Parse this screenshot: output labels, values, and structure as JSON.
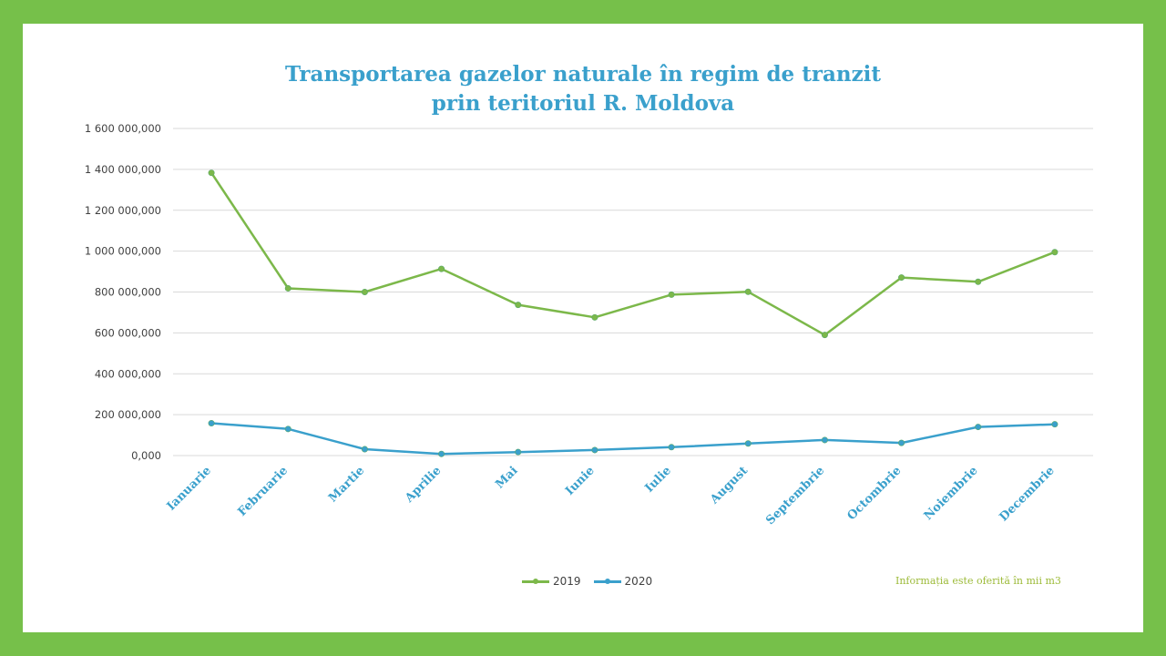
{
  "colors": {
    "frame": "#76c04a",
    "series_2019": "#7cb84a",
    "series_2020": "#3aa0cc",
    "title": "#3aa0cc",
    "note": "#9dbb3a",
    "grid": "#d9d9d9"
  },
  "note": "Informația  este oferită în mii m3",
  "chart_data": {
    "type": "line",
    "title_lines": [
      "Transportarea gazelor naturale în regim de tranzit",
      "prin teritoriul R. Moldova"
    ],
    "categories": [
      "Ianuarie",
      "Februarie",
      "Martie",
      "Aprilie",
      "Mai",
      "Iunie",
      "Iulie",
      "August",
      "Septembrie",
      "Octombrie",
      "Noiembrie",
      "Decembrie"
    ],
    "series": [
      {
        "name": "2019",
        "color": "#7cb84a",
        "values": [
          1383000000,
          818000000,
          800000000,
          913000000,
          737000000,
          676000000,
          787000000,
          801000000,
          590000000,
          871000000,
          850000000,
          995000000
        ]
      },
      {
        "name": "2020",
        "color": "#3aa0cc",
        "values": [
          158000000,
          130000000,
          31000000,
          8000000,
          17000000,
          27000000,
          41000000,
          59000000,
          76000000,
          62000000,
          140000000,
          153000000
        ]
      }
    ],
    "y_ticks": [
      "1 600 000,000",
      "1 400 000,000",
      "1 200 000,000",
      "1 000 000,000",
      "800 000,000",
      "600 000,000",
      "400 000,000",
      "200 000,000",
      "0,000"
    ],
    "ylim": [
      0,
      1600000000
    ],
    "grid": true,
    "legend_position": "bottom"
  }
}
